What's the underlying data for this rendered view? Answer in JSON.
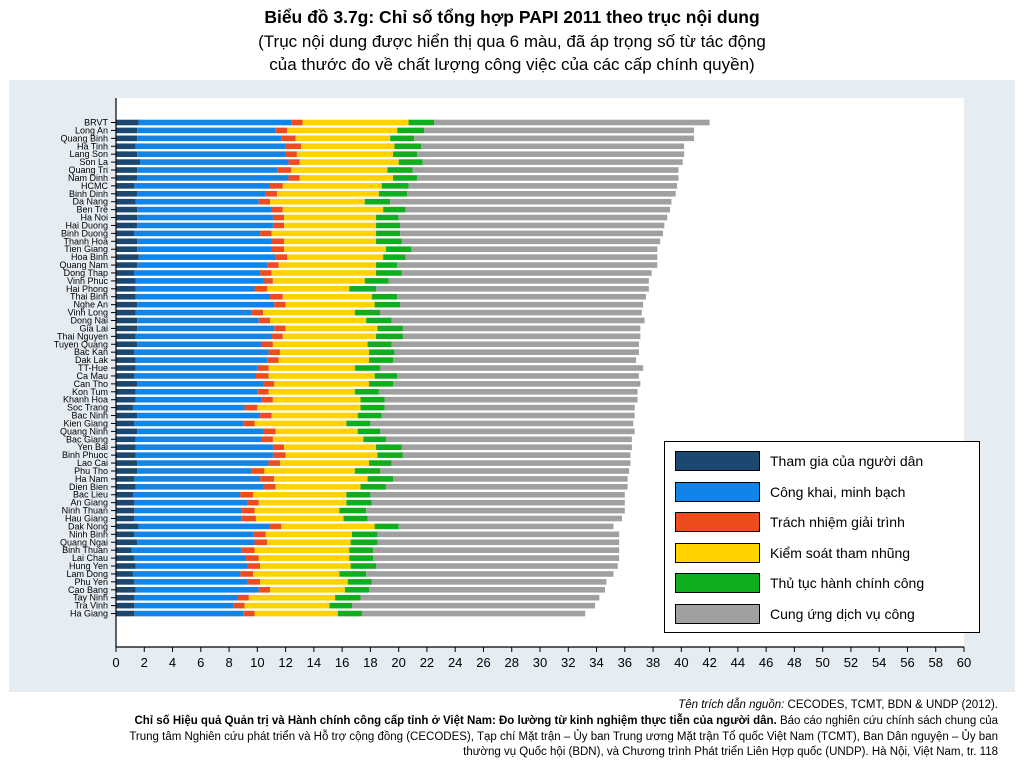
{
  "header": {
    "title": "Biểu đồ 3.7g: Chỉ số tổng hợp PAPI 2011 theo trục nội dung",
    "subtitle_line1": "(Trục nội dung được hiển thị qua 6 màu, đã áp trọng số từ tác động",
    "subtitle_line2": "của thước đo về chất lượng công việc của các cấp chính quyền)"
  },
  "legend": [
    {
      "label": "Tham gia của người dân",
      "color": "#1c4870"
    },
    {
      "label": "Công khai, minh bạch",
      "color": "#1184ea"
    },
    {
      "label": "Trách nhiệm giải trình",
      "color": "#f04b1e"
    },
    {
      "label": "Kiểm soát tham nhũng",
      "color": "#ffd200"
    },
    {
      "label": "Thủ tục hành chính công",
      "color": "#10ae1e"
    },
    {
      "label": "Cung ứng dịch vụ công",
      "color": "#a0a0a0"
    }
  ],
  "citation": {
    "source_prefix": "Tên trích dẫn nguồn:",
    "source_text": "CECODES, TCMT, BDN & UNDP (2012).",
    "line2_bold": "Chỉ số Hiệu quả Quản trị và Hành chính công cấp tỉnh ở Việt Nam: Đo lường từ kinh nghiệm thực tiễn của người dân.",
    "line2_rest": "Báo cáo nghiên cứu chính sách chung của",
    "line3": "Trung tâm Nghiên cứu phát triển và Hỗ trợ cộng đồng (CECODES), Tạp chí Mặt trận – Ủy ban Trung ương Mặt trận Tổ quốc Việt Nam (TCMT), Ban Dân nguyện – Ủy ban",
    "line4": "thường vụ Quốc hội (BDN), và Chương trình Phát triển Liên Hợp quốc (UNDP). Hà Nội, Việt Nam, tr. 118"
  },
  "chart_data": {
    "type": "bar",
    "orientation": "horizontal",
    "stacked": true,
    "xlim": [
      0,
      60
    ],
    "xticks": [
      0,
      2,
      4,
      6,
      8,
      10,
      12,
      14,
      16,
      18,
      20,
      22,
      24,
      26,
      28,
      30,
      32,
      34,
      36,
      38,
      40,
      42,
      44,
      46,
      48,
      50,
      52,
      54,
      56,
      58,
      60
    ],
    "legend_position": "bottom-right",
    "grid": false,
    "series_names": [
      "Tham gia của người dân",
      "Công khai, minh bạch",
      "Trách nhiệm giải trình",
      "Kiểm soát tham nhũng",
      "Thủ tục hành chính công",
      "Cung ứng dịch vụ công"
    ],
    "colors": [
      "#1c4870",
      "#1184ea",
      "#f04b1e",
      "#ffd200",
      "#10ae1e",
      "#a0a0a0"
    ],
    "rows": [
      {
        "name": "BRVT",
        "cum": [
          1.6,
          12.4,
          13.2,
          20.7,
          22.5,
          42.0
        ]
      },
      {
        "name": "Long An",
        "cum": [
          1.5,
          11.3,
          12.1,
          19.9,
          21.8,
          40.9
        ]
      },
      {
        "name": "Quang Binh",
        "cum": [
          1.5,
          11.7,
          12.7,
          19.4,
          21.1,
          40.9
        ]
      },
      {
        "name": "Ha Tinh",
        "cum": [
          1.4,
          12.0,
          13.1,
          19.7,
          21.6,
          40.2
        ]
      },
      {
        "name": "Lang Son",
        "cum": [
          1.5,
          12.0,
          12.8,
          19.6,
          21.3,
          40.2
        ]
      },
      {
        "name": "Son La",
        "cum": [
          1.7,
          12.2,
          13.0,
          20.0,
          21.7,
          40.1
        ]
      },
      {
        "name": "Quang Tri",
        "cum": [
          1.5,
          11.4,
          12.4,
          19.2,
          21.0,
          39.8
        ]
      },
      {
        "name": "Nam Dinh",
        "cum": [
          1.5,
          12.2,
          13.0,
          19.6,
          21.3,
          39.8
        ]
      },
      {
        "name": "HCMC",
        "cum": [
          1.3,
          10.9,
          11.8,
          18.8,
          20.7,
          39.7
        ]
      },
      {
        "name": "Binh Dinh",
        "cum": [
          1.5,
          10.6,
          11.4,
          18.6,
          20.6,
          39.6
        ]
      },
      {
        "name": "Da Nang",
        "cum": [
          1.4,
          10.1,
          10.9,
          17.6,
          19.4,
          39.3
        ]
      },
      {
        "name": "Ben Tre",
        "cum": [
          1.5,
          11.0,
          11.8,
          18.9,
          20.5,
          39.2
        ]
      },
      {
        "name": "Ha Noi",
        "cum": [
          1.5,
          11.1,
          11.9,
          18.4,
          20.0,
          39.0
        ]
      },
      {
        "name": "Hai Duong",
        "cum": [
          1.5,
          11.1,
          11.9,
          18.4,
          20.1,
          38.8
        ]
      },
      {
        "name": "Binh Duong",
        "cum": [
          1.3,
          10.2,
          11.0,
          18.4,
          20.1,
          38.7
        ]
      },
      {
        "name": "Thanh Hoa",
        "cum": [
          1.5,
          11.0,
          11.9,
          18.4,
          20.2,
          38.5
        ]
      },
      {
        "name": "Tien Giang",
        "cum": [
          1.5,
          11.0,
          11.9,
          19.1,
          20.9,
          38.3
        ]
      },
      {
        "name": "Hoa Binh",
        "cum": [
          1.6,
          11.3,
          12.1,
          18.9,
          20.5,
          38.3
        ]
      },
      {
        "name": "Quang Nam",
        "cum": [
          1.5,
          10.7,
          11.5,
          18.4,
          19.9,
          38.3
        ]
      },
      {
        "name": "Dong Thap",
        "cum": [
          1.3,
          10.2,
          11.0,
          18.4,
          20.2,
          37.9
        ]
      },
      {
        "name": "Vinh Phuc",
        "cum": [
          1.4,
          10.4,
          11.1,
          17.6,
          19.3,
          37.7
        ]
      },
      {
        "name": "Hai Phong",
        "cum": [
          1.4,
          9.8,
          10.7,
          16.5,
          18.4,
          37.7
        ]
      },
      {
        "name": "Thai Binh",
        "cum": [
          1.4,
          10.9,
          11.8,
          18.1,
          19.9,
          37.5
        ]
      },
      {
        "name": "Nghe An",
        "cum": [
          1.5,
          11.2,
          12.0,
          18.3,
          20.1,
          37.3
        ]
      },
      {
        "name": "Vinh Long",
        "cum": [
          1.4,
          9.6,
          10.4,
          16.9,
          18.7,
          37.2
        ]
      },
      {
        "name": "Dong Nai",
        "cum": [
          1.5,
          10.1,
          10.9,
          17.7,
          19.5,
          37.4
        ]
      },
      {
        "name": "Gia Lai",
        "cum": [
          1.5,
          11.2,
          12.0,
          18.5,
          20.3,
          37.1
        ]
      },
      {
        "name": "Thai Nguyen",
        "cum": [
          1.4,
          11.0,
          11.8,
          18.4,
          20.3,
          37.1
        ]
      },
      {
        "name": "Tuyen Quang",
        "cum": [
          1.5,
          10.3,
          11.1,
          17.8,
          19.5,
          37.0
        ]
      },
      {
        "name": "Bac Kan",
        "cum": [
          1.3,
          10.8,
          11.6,
          17.9,
          19.7,
          37.0
        ]
      },
      {
        "name": "Dak Lak",
        "cum": [
          1.4,
          10.7,
          11.5,
          17.9,
          19.6,
          36.8
        ]
      },
      {
        "name": "TT-Hue",
        "cum": [
          1.4,
          10.0,
          10.8,
          16.9,
          18.7,
          37.3
        ]
      },
      {
        "name": "Ca Mau",
        "cum": [
          1.3,
          9.9,
          10.8,
          18.3,
          19.9,
          37.0
        ]
      },
      {
        "name": "Can Tho",
        "cum": [
          1.5,
          10.4,
          11.2,
          17.9,
          19.6,
          37.1
        ]
      },
      {
        "name": "Kon Tum",
        "cum": [
          1.4,
          10.0,
          10.8,
          16.9,
          18.6,
          36.9
        ]
      },
      {
        "name": "Khanh Hoa",
        "cum": [
          1.4,
          10.3,
          11.1,
          17.3,
          19.0,
          36.9
        ]
      },
      {
        "name": "Soc Trang",
        "cum": [
          1.2,
          9.1,
          10.0,
          17.3,
          19.0,
          36.7
        ]
      },
      {
        "name": "Bac Ninh",
        "cum": [
          1.5,
          10.2,
          11.0,
          17.1,
          18.8,
          36.7
        ]
      },
      {
        "name": "Kien Giang",
        "cum": [
          1.3,
          9.0,
          9.8,
          16.3,
          18.0,
          36.6
        ]
      },
      {
        "name": "Quang Ninh",
        "cum": [
          1.5,
          10.4,
          11.3,
          17.1,
          18.7,
          36.7
        ]
      },
      {
        "name": "Bac Giang",
        "cum": [
          1.4,
          10.3,
          11.1,
          17.5,
          19.1,
          36.5
        ]
      },
      {
        "name": "Yen Bai",
        "cum": [
          1.4,
          11.1,
          11.9,
          18.4,
          20.2,
          36.5
        ]
      },
      {
        "name": "Binh Phuoc",
        "cum": [
          1.4,
          11.1,
          12.0,
          18.5,
          20.3,
          36.4
        ]
      },
      {
        "name": "Lao Cai",
        "cum": [
          1.5,
          10.8,
          11.6,
          17.9,
          19.5,
          36.4
        ]
      },
      {
        "name": "Phu Tho",
        "cum": [
          1.5,
          9.6,
          10.5,
          16.9,
          18.7,
          36.3
        ]
      },
      {
        "name": "Ha Nam",
        "cum": [
          1.3,
          10.2,
          11.2,
          17.8,
          19.6,
          36.2
        ]
      },
      {
        "name": "Dien Bien",
        "cum": [
          1.4,
          10.4,
          11.3,
          17.3,
          19.1,
          36.2
        ]
      },
      {
        "name": "Bac Lieu",
        "cum": [
          1.2,
          8.8,
          9.7,
          16.3,
          18.0,
          36.0
        ]
      },
      {
        "name": "An Giang",
        "cum": [
          1.3,
          9.3,
          10.1,
          16.3,
          18.1,
          36.0
        ]
      },
      {
        "name": "Ninh Thuan",
        "cum": [
          1.3,
          8.9,
          9.8,
          15.8,
          17.7,
          36.0
        ]
      },
      {
        "name": "Hau Giang",
        "cum": [
          1.3,
          8.9,
          9.9,
          16.1,
          17.8,
          35.8
        ]
      },
      {
        "name": "Dak Nong",
        "cum": [
          1.6,
          10.9,
          11.7,
          18.3,
          20.0,
          35.2
        ]
      },
      {
        "name": "Ninh Binh",
        "cum": [
          1.3,
          9.7,
          10.6,
          16.7,
          18.5,
          35.6
        ]
      },
      {
        "name": "Quang Ngai",
        "cum": [
          1.5,
          9.8,
          10.7,
          16.6,
          18.5,
          35.6
        ]
      },
      {
        "name": "Binh Thuan",
        "cum": [
          1.1,
          8.9,
          9.8,
          16.5,
          18.2,
          35.6
        ]
      },
      {
        "name": "Lai Chau",
        "cum": [
          1.3,
          9.2,
          10.1,
          16.5,
          18.2,
          35.6
        ]
      },
      {
        "name": "Hung Yen",
        "cum": [
          1.4,
          9.3,
          10.2,
          16.6,
          18.4,
          35.5
        ]
      },
      {
        "name": "Lam Dong",
        "cum": [
          1.2,
          8.8,
          9.7,
          15.8,
          17.7,
          35.2
        ]
      },
      {
        "name": "Phu Yen",
        "cum": [
          1.3,
          9.3,
          10.2,
          16.4,
          18.1,
          34.7
        ]
      },
      {
        "name": "Cao Bang",
        "cum": [
          1.4,
          10.1,
          10.9,
          16.2,
          17.9,
          34.6
        ]
      },
      {
        "name": "Tay Ninh",
        "cum": [
          1.3,
          8.6,
          9.4,
          15.5,
          17.3,
          34.2
        ]
      },
      {
        "name": "Tra Vinh",
        "cum": [
          1.3,
          8.3,
          9.1,
          15.1,
          16.7,
          33.9
        ]
      },
      {
        "name": "Ha Giang",
        "cum": [
          1.3,
          9.0,
          9.8,
          15.7,
          17.4,
          33.2
        ]
      }
    ]
  }
}
